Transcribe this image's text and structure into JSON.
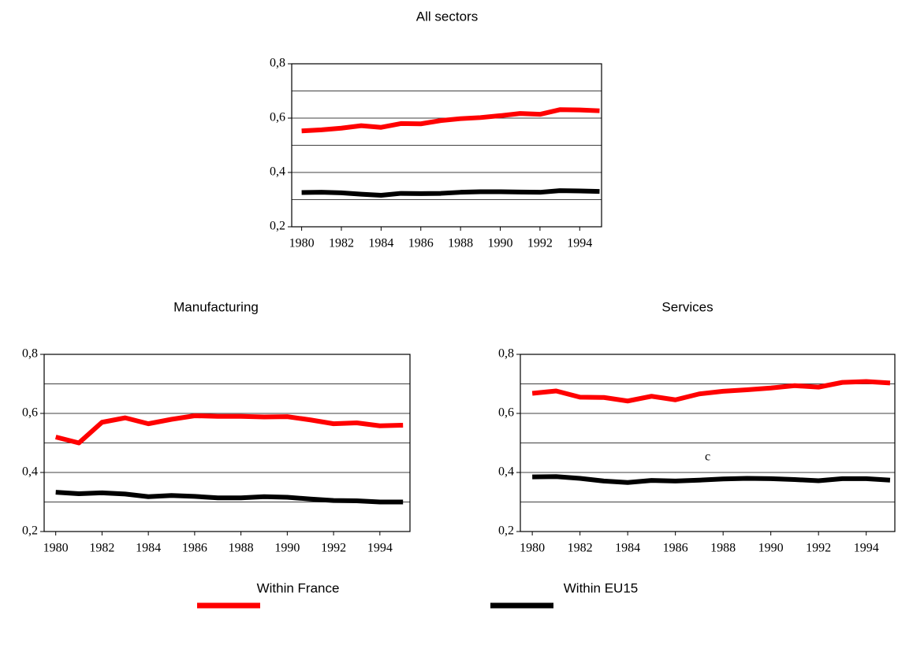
{
  "chart_data": [
    {
      "type": "line",
      "title": "All sectors",
      "x": [
        1980,
        1981,
        1982,
        1983,
        1984,
        1985,
        1986,
        1987,
        1988,
        1989,
        1990,
        1991,
        1992,
        1993,
        1994,
        1995
      ],
      "series": [
        {
          "name": "Within France",
          "color": "#ff0000",
          "values": [
            0.553,
            0.557,
            0.563,
            0.572,
            0.566,
            0.58,
            0.579,
            0.591,
            0.598,
            0.602,
            0.609,
            0.617,
            0.614,
            0.631,
            0.63,
            0.627
          ]
        },
        {
          "name": "Within EU15",
          "color": "#000000",
          "values": [
            0.326,
            0.327,
            0.325,
            0.32,
            0.316,
            0.323,
            0.322,
            0.323,
            0.327,
            0.329,
            0.329,
            0.328,
            0.327,
            0.333,
            0.332,
            0.33
          ]
        }
      ],
      "xlim": [
        1979.5,
        1995.1
      ],
      "xticks": [
        1980,
        1982,
        1984,
        1986,
        1988,
        1990,
        1992,
        1994
      ],
      "ylim": [
        0.2,
        0.8
      ],
      "yticks": [
        {
          "value": 0.2,
          "label": "0,2"
        },
        {
          "value": 0.4,
          "label": "0,4"
        },
        {
          "value": 0.6,
          "label": "0,6"
        },
        {
          "value": 0.8,
          "label": "0,8"
        }
      ],
      "ygrid": [
        0.3,
        0.4,
        0.5,
        0.6,
        0.7
      ]
    },
    {
      "type": "line",
      "title": "Manufacturing",
      "x": [
        1980,
        1981,
        1982,
        1983,
        1984,
        1985,
        1986,
        1987,
        1988,
        1989,
        1990,
        1991,
        1992,
        1993,
        1994,
        1995
      ],
      "series": [
        {
          "color": "#ff0000",
          "values": [
            0.52,
            0.5,
            0.57,
            0.585,
            0.565,
            0.58,
            0.592,
            0.59,
            0.59,
            0.588,
            0.589,
            0.578,
            0.565,
            0.568,
            0.558,
            0.56
          ]
        },
        {
          "color": "#000000",
          "values": [
            0.333,
            0.328,
            0.331,
            0.327,
            0.318,
            0.322,
            0.319,
            0.314,
            0.314,
            0.318,
            0.316,
            0.31,
            0.305,
            0.304,
            0.3,
            0.3
          ]
        }
      ],
      "xlim": [
        1979.5,
        1995.3
      ],
      "xticks": [
        1980,
        1982,
        1984,
        1986,
        1988,
        1990,
        1992,
        1994
      ],
      "ylim": [
        0.2,
        0.8
      ],
      "yticks": [
        {
          "value": 0.2,
          "label": "0,2"
        },
        {
          "value": 0.4,
          "label": "0,4"
        },
        {
          "value": 0.6,
          "label": "0,6"
        },
        {
          "value": 0.8,
          "label": "0,8"
        }
      ],
      "ygrid": [
        0.3,
        0.4,
        0.5,
        0.6,
        0.7
      ]
    },
    {
      "type": "line",
      "title": "Services",
      "annotation": "c",
      "x": [
        1980,
        1981,
        1982,
        1983,
        1984,
        1985,
        1986,
        1987,
        1988,
        1989,
        1990,
        1991,
        1992,
        1993,
        1994,
        1995
      ],
      "series": [
        {
          "color": "#ff0000",
          "values": [
            0.668,
            0.676,
            0.655,
            0.654,
            0.642,
            0.658,
            0.646,
            0.666,
            0.675,
            0.68,
            0.686,
            0.694,
            0.689,
            0.705,
            0.708,
            0.703
          ]
        },
        {
          "color": "#000000",
          "values": [
            0.385,
            0.386,
            0.38,
            0.371,
            0.366,
            0.373,
            0.371,
            0.374,
            0.378,
            0.38,
            0.379,
            0.376,
            0.372,
            0.379,
            0.379,
            0.374
          ]
        }
      ],
      "xlim": [
        1979.5,
        1995.2
      ],
      "xticks": [
        1980,
        1982,
        1984,
        1986,
        1988,
        1990,
        1992,
        1994
      ],
      "ylim": [
        0.2,
        0.8
      ],
      "yticks": [
        {
          "value": 0.2,
          "label": "0,2"
        },
        {
          "value": 0.4,
          "label": "0,4"
        },
        {
          "value": 0.6,
          "label": "0,6"
        },
        {
          "value": 0.8,
          "label": "0,8"
        }
      ],
      "ygrid": [
        0.3,
        0.4,
        0.5,
        0.6,
        0.7
      ]
    }
  ]
}
